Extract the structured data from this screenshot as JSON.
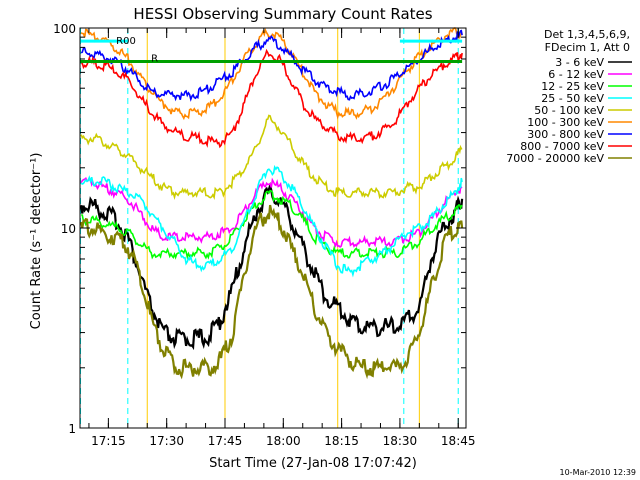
{
  "chart_data": {
    "type": "line",
    "title": "HESSI Observing Summary Count Rates",
    "xlabel": "Start Time (27-Jan-08 17:07:42)",
    "ylabel": "Count Rate (s⁻¹ detector⁻¹)",
    "yscale": "log",
    "ylim": [
      1,
      100
    ],
    "xlim": [
      "17:07:42",
      "18:47:00"
    ],
    "yticks": [
      1,
      10,
      100
    ],
    "ytick_labels": [
      "1",
      "10",
      "100"
    ],
    "xticks": [
      "17:15",
      "17:30",
      "17:45",
      "18:00",
      "18:15",
      "18:30",
      "18:45"
    ],
    "legend_header": [
      "Det 1,3,4,5,6,9,",
      "FDecim 1, Att 0"
    ],
    "legend_position": "right",
    "footer": "10-Mar-2010 12:39",
    "annotations": [
      {
        "text": "R00",
        "x": "17:17",
        "y": 83
      },
      {
        "text": "R",
        "x": "17:26",
        "y": 68
      }
    ],
    "flags": [
      {
        "name": "top-flag",
        "color": "#00ffff",
        "y": 86,
        "segments": [
          [
            "17:07:42",
            "17:20"
          ],
          [
            "18:30",
            "18:46"
          ]
        ]
      },
      {
        "name": "green-flag",
        "color": "#00a000",
        "y": 68,
        "segments": [
          [
            "17:07:42",
            "18:46"
          ]
        ]
      }
    ],
    "vlines": [
      {
        "x": "17:07:50",
        "color": "#00ffff",
        "style": "dashed"
      },
      {
        "x": "17:20",
        "color": "#00ffff",
        "style": "dashed"
      },
      {
        "x": "18:31",
        "color": "#00ffff",
        "style": "dashed"
      },
      {
        "x": "18:45",
        "color": "#00ffff",
        "style": "dashed"
      },
      {
        "x": "17:25",
        "color": "#ffcc00",
        "style": "solid"
      },
      {
        "x": "17:45",
        "color": "#ffcc00",
        "style": "solid"
      },
      {
        "x": "18:14",
        "color": "#ffcc00",
        "style": "solid"
      },
      {
        "x": "18:35",
        "color": "#ffcc00",
        "style": "solid"
      }
    ],
    "x": [
      "17:08",
      "17:11",
      "17:14",
      "17:17",
      "17:20",
      "17:23",
      "17:26",
      "17:29",
      "17:32",
      "17:35",
      "17:38",
      "17:41",
      "17:44",
      "17:47",
      "17:50",
      "17:53",
      "17:56",
      "17:59",
      "18:02",
      "18:05",
      "18:08",
      "18:11",
      "18:14",
      "18:17",
      "18:20",
      "18:23",
      "18:26",
      "18:29",
      "18:32",
      "18:35",
      "18:38",
      "18:41",
      "18:44",
      "18:46"
    ],
    "series": [
      {
        "name": "3 - 6 keV",
        "color": "#000000",
        "values": [
          13,
          13,
          12,
          11,
          9,
          6,
          4,
          3,
          2.8,
          2.8,
          2.8,
          2.9,
          3.5,
          5,
          8,
          12,
          15,
          14,
          11,
          8,
          6,
          4.5,
          4,
          3.5,
          3.2,
          3.2,
          3.2,
          3.2,
          3.5,
          4,
          7,
          10,
          12,
          14
        ]
      },
      {
        "name": "6 - 12 keV",
        "color": "#ff00ff",
        "values": [
          17,
          17,
          16,
          15,
          14,
          12,
          10,
          9,
          9,
          9,
          9,
          9,
          9.5,
          10,
          12,
          15,
          17,
          16,
          14,
          12,
          10,
          9,
          8.5,
          8.5,
          8.5,
          8.5,
          8.5,
          8.5,
          9,
          9.5,
          11,
          13,
          15,
          16
        ]
      },
      {
        "name": "12 - 25 keV",
        "color": "#00ff00",
        "values": [
          11,
          11,
          10.5,
          10,
          9.5,
          8.5,
          7.5,
          7.5,
          7.5,
          7.5,
          7.5,
          7.5,
          8,
          9,
          11,
          13,
          15,
          14,
          13,
          11,
          9,
          8,
          7.5,
          7.5,
          7.5,
          7.5,
          7.5,
          7.5,
          8,
          8.5,
          10,
          11,
          12,
          13
        ]
      },
      {
        "name": "25 - 50 keV",
        "color": "#00ffff",
        "values": [
          17,
          17,
          17,
          16,
          15,
          14,
          12,
          10,
          8.5,
          7,
          6.5,
          6.5,
          7,
          8,
          11,
          15,
          20,
          19,
          16,
          13,
          10,
          8,
          6.5,
          6,
          6.5,
          7,
          7.5,
          8.5,
          9.5,
          10,
          11,
          13,
          15,
          17
        ]
      },
      {
        "name": "50 - 100 keV",
        "color": "#cccc00",
        "values": [
          28,
          28,
          27,
          25,
          23,
          20,
          18,
          16,
          15,
          15,
          15,
          15,
          15,
          17,
          20,
          25,
          35,
          32,
          26,
          21,
          18,
          16,
          15,
          15,
          15,
          15,
          15,
          15,
          16,
          16,
          18,
          20,
          22,
          25
        ]
      },
      {
        "name": "100 - 300 keV",
        "color": "#ff8800",
        "values": [
          95,
          92,
          88,
          80,
          70,
          58,
          48,
          42,
          38,
          37,
          38,
          40,
          45,
          55,
          70,
          85,
          95,
          90,
          75,
          60,
          48,
          42,
          38,
          37,
          38,
          40,
          45,
          52,
          62,
          72,
          82,
          90,
          95,
          95
        ]
      },
      {
        "name": "300 - 800 keV",
        "color": "#0000ff",
        "values": [
          75,
          75,
          72,
          68,
          62,
          55,
          48,
          47,
          46,
          46,
          47,
          50,
          55,
          60,
          70,
          80,
          88,
          82,
          72,
          62,
          55,
          50,
          48,
          46,
          47,
          49,
          52,
          57,
          63,
          70,
          78,
          85,
          90,
          92
        ]
      },
      {
        "name": "800 - 7000 keV",
        "color": "#ff0000",
        "values": [
          67,
          67,
          65,
          60,
          55,
          45,
          38,
          33,
          30,
          29,
          28,
          27,
          27,
          30,
          42,
          60,
          75,
          70,
          55,
          42,
          35,
          32,
          29,
          28,
          28,
          29,
          31,
          35,
          42,
          50,
          58,
          65,
          70,
          75
        ]
      },
      {
        "name": "7000 - 20000 keV",
        "color": "#808000",
        "values": [
          10,
          10,
          9.5,
          9,
          8,
          6,
          3.5,
          2.5,
          2,
          2,
          2,
          2,
          2.2,
          3,
          6,
          10,
          12,
          11,
          8,
          6,
          4,
          3,
          2.5,
          2.2,
          2,
          2,
          2,
          2,
          2.3,
          3,
          5,
          8,
          10,
          10
        ]
      }
    ]
  }
}
